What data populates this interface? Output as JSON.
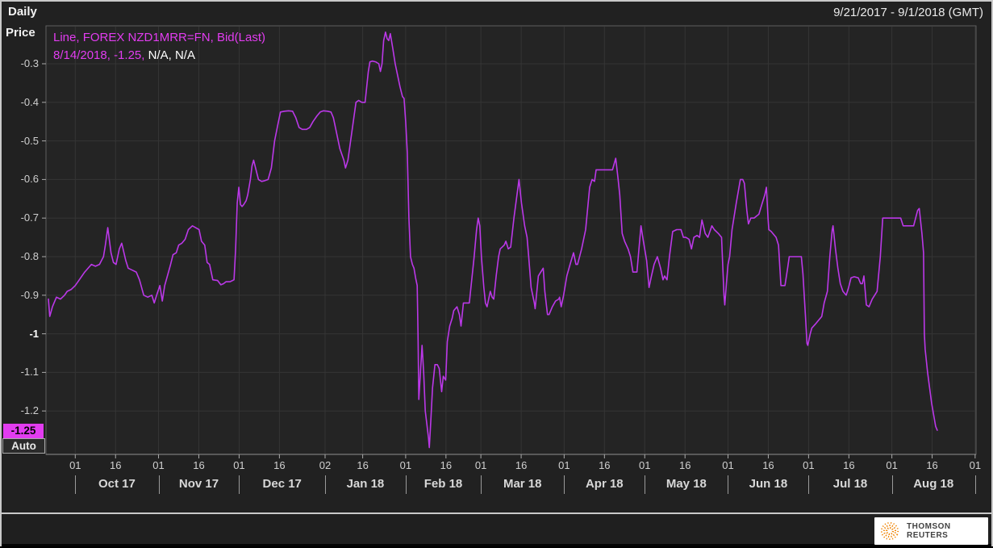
{
  "window": {
    "frequency_label": "Daily",
    "date_range": "9/21/2017 - 9/1/2018 (GMT)"
  },
  "y_axis": {
    "title": "Price",
    "last_value_badge": "-1.25",
    "auto_button": "Auto"
  },
  "legend": {
    "series_line": "Line, FOREX NZD1MRR=FN, Bid(Last)",
    "tracker_highlight": "8/14/2018, -1.25,",
    "tracker_rest": " N/A, N/A"
  },
  "footer": {
    "brand": "THOMSON REUTERS"
  },
  "colors": {
    "line": "#bb38e8",
    "legend_text": "#e23cf0",
    "badge_bg": "#e23cf0",
    "badge_text": "#000000",
    "grid": "#353535",
    "axis_text": "#cfcfcf",
    "plot_border": "#5e5e5e",
    "axis_line": "#8f8f8f",
    "tick": "#aaaaaa",
    "app_bg": "#212121",
    "plot_bg": "#242424",
    "frame": "#c9c9c9",
    "logo_orange": "#ef8200"
  },
  "chart_data": {
    "type": "line",
    "title": "",
    "ylabel": "Price",
    "series_name": "FOREX NZD1MRR=FN Bid(Last)",
    "x_unit": "days since 2017-09-21",
    "x_domain_days": [
      0,
      345
    ],
    "ylim": [
      -1.31,
      -0.2
    ],
    "grid": true,
    "legend_position": "top-left",
    "y_ticks": [
      {
        "label": "-0.3",
        "value": -0.3
      },
      {
        "label": "-0.4",
        "value": -0.4
      },
      {
        "label": "-0.5",
        "value": -0.5
      },
      {
        "label": "-0.6",
        "value": -0.6
      },
      {
        "label": "-0.7",
        "value": -0.7
      },
      {
        "label": "-0.8",
        "value": -0.8
      },
      {
        "label": "-0.9",
        "value": -0.9
      },
      {
        "label": "-1",
        "value": -1.0,
        "bold": true
      },
      {
        "label": "-1.1",
        "value": -1.1
      },
      {
        "label": "-1.2",
        "value": -1.2
      }
    ],
    "x_ticks": [
      {
        "label": "01",
        "day": 10
      },
      {
        "label": "16",
        "day": 25
      },
      {
        "label": "01",
        "day": 41
      },
      {
        "label": "16",
        "day": 56
      },
      {
        "label": "01",
        "day": 71
      },
      {
        "label": "16",
        "day": 86
      },
      {
        "label": "02",
        "day": 103
      },
      {
        "label": "16",
        "day": 117
      },
      {
        "label": "01",
        "day": 133
      },
      {
        "label": "16",
        "day": 148
      },
      {
        "label": "01",
        "day": 161
      },
      {
        "label": "16",
        "day": 176
      },
      {
        "label": "01",
        "day": 192
      },
      {
        "label": "16",
        "day": 207
      },
      {
        "label": "01",
        "day": 222
      },
      {
        "label": "16",
        "day": 237
      },
      {
        "label": "01",
        "day": 253
      },
      {
        "label": "16",
        "day": 268
      },
      {
        "label": "01",
        "day": 283
      },
      {
        "label": "16",
        "day": 298
      },
      {
        "label": "01",
        "day": 314
      },
      {
        "label": "16",
        "day": 329
      },
      {
        "label": "01",
        "day": 345
      }
    ],
    "month_separators_days": [
      10,
      41,
      71,
      103,
      133,
      161,
      192,
      222,
      253,
      283,
      314,
      345
    ],
    "months": [
      {
        "label": "Oct 17",
        "center_day": 25.5
      },
      {
        "label": "Nov 17",
        "center_day": 56
      },
      {
        "label": "Dec 17",
        "center_day": 87
      },
      {
        "label": "Jan 18",
        "center_day": 118
      },
      {
        "label": "Feb 18",
        "center_day": 147
      },
      {
        "label": "Mar 18",
        "center_day": 176.5
      },
      {
        "label": "Apr 18",
        "center_day": 207
      },
      {
        "label": "May 18",
        "center_day": 237.5
      },
      {
        "label": "Jun 18",
        "center_day": 268
      },
      {
        "label": "Jul 18",
        "center_day": 298.5
      },
      {
        "label": "Aug 18",
        "center_day": 329.5
      }
    ],
    "points": [
      [
        0,
        -0.91
      ],
      [
        0.5,
        -0.955
      ],
      [
        1.5,
        -0.93
      ],
      [
        3,
        -0.905
      ],
      [
        4.5,
        -0.91
      ],
      [
        6,
        -0.9
      ],
      [
        7,
        -0.89
      ],
      [
        8.5,
        -0.885
      ],
      [
        10,
        -0.875
      ],
      [
        11.5,
        -0.86
      ],
      [
        13.5,
        -0.84
      ],
      [
        16,
        -0.82
      ],
      [
        17.5,
        -0.825
      ],
      [
        19,
        -0.82
      ],
      [
        20.5,
        -0.8
      ],
      [
        21.2,
        -0.77
      ],
      [
        22.1,
        -0.725
      ],
      [
        23.3,
        -0.79
      ],
      [
        24.2,
        -0.815
      ],
      [
        25.2,
        -0.82
      ],
      [
        26.4,
        -0.78
      ],
      [
        27.3,
        -0.765
      ],
      [
        28.8,
        -0.81
      ],
      [
        29.7,
        -0.83
      ],
      [
        31.2,
        -0.835
      ],
      [
        32.7,
        -0.84
      ],
      [
        33.9,
        -0.86
      ],
      [
        35.5,
        -0.9
      ],
      [
        37,
        -0.905
      ],
      [
        38.5,
        -0.9
      ],
      [
        39.4,
        -0.92
      ],
      [
        40.3,
        -0.9
      ],
      [
        41.5,
        -0.875
      ],
      [
        42.4,
        -0.915
      ],
      [
        43.3,
        -0.875
      ],
      [
        44.5,
        -0.845
      ],
      [
        45.5,
        -0.82
      ],
      [
        46.4,
        -0.795
      ],
      [
        47.6,
        -0.79
      ],
      [
        48.5,
        -0.77
      ],
      [
        49.7,
        -0.765
      ],
      [
        50.9,
        -0.755
      ],
      [
        52.1,
        -0.73
      ],
      [
        53.6,
        -0.72
      ],
      [
        54.8,
        -0.725
      ],
      [
        56.1,
        -0.73
      ],
      [
        57,
        -0.76
      ],
      [
        58.2,
        -0.77
      ],
      [
        59.1,
        -0.815
      ],
      [
        60,
        -0.82
      ],
      [
        61.2,
        -0.86
      ],
      [
        63,
        -0.862
      ],
      [
        64.2,
        -0.873
      ],
      [
        65.2,
        -0.87
      ],
      [
        66.1,
        -0.865
      ],
      [
        67.6,
        -0.865
      ],
      [
        69.1,
        -0.86
      ],
      [
        69.7,
        -0.78
      ],
      [
        70.3,
        -0.66
      ],
      [
        70.9,
        -0.62
      ],
      [
        71.5,
        -0.665
      ],
      [
        72.1,
        -0.67
      ],
      [
        72.7,
        -0.665
      ],
      [
        73.6,
        -0.655
      ],
      [
        74.2,
        -0.64
      ],
      [
        75.2,
        -0.6
      ],
      [
        75.8,
        -0.565
      ],
      [
        76.4,
        -0.55
      ],
      [
        77.3,
        -0.575
      ],
      [
        78.2,
        -0.6
      ],
      [
        79.4,
        -0.605
      ],
      [
        80.6,
        -0.603
      ],
      [
        81.8,
        -0.6
      ],
      [
        83,
        -0.57
      ],
      [
        84.2,
        -0.5
      ],
      [
        85.5,
        -0.455
      ],
      [
        86.4,
        -0.425
      ],
      [
        87.9,
        -0.423
      ],
      [
        89.4,
        -0.422
      ],
      [
        90.9,
        -0.423
      ],
      [
        92.1,
        -0.44
      ],
      [
        93.3,
        -0.465
      ],
      [
        94.5,
        -0.47
      ],
      [
        96.1,
        -0.47
      ],
      [
        97.3,
        -0.465
      ],
      [
        98.5,
        -0.45
      ],
      [
        100,
        -0.435
      ],
      [
        101.2,
        -0.425
      ],
      [
        102.4,
        -0.422
      ],
      [
        103.9,
        -0.423
      ],
      [
        105.2,
        -0.425
      ],
      [
        106.1,
        -0.44
      ],
      [
        107.3,
        -0.48
      ],
      [
        108.5,
        -0.52
      ],
      [
        110,
        -0.55
      ],
      [
        110.6,
        -0.57
      ],
      [
        111.5,
        -0.55
      ],
      [
        112.1,
        -0.52
      ],
      [
        113.3,
        -0.46
      ],
      [
        114.5,
        -0.4
      ],
      [
        115.5,
        -0.395
      ],
      [
        116.7,
        -0.4
      ],
      [
        117.9,
        -0.4
      ],
      [
        119.1,
        -0.32
      ],
      [
        119.7,
        -0.295
      ],
      [
        120.6,
        -0.293
      ],
      [
        121.8,
        -0.295
      ],
      [
        123,
        -0.3
      ],
      [
        123.6,
        -0.32
      ],
      [
        124.2,
        -0.3
      ],
      [
        124.8,
        -0.24
      ],
      [
        125.5,
        -0.218
      ],
      [
        126.1,
        -0.235
      ],
      [
        126.7,
        -0.24
      ],
      [
        127.3,
        -0.222
      ],
      [
        128.2,
        -0.26
      ],
      [
        129.1,
        -0.3
      ],
      [
        130,
        -0.33
      ],
      [
        130.9,
        -0.36
      ],
      [
        131.8,
        -0.385
      ],
      [
        132.4,
        -0.39
      ],
      [
        133,
        -0.45
      ],
      [
        133.6,
        -0.53
      ],
      [
        134.2,
        -0.7
      ],
      [
        134.8,
        -0.8
      ],
      [
        135.5,
        -0.82
      ],
      [
        136.1,
        -0.83
      ],
      [
        136.7,
        -0.855
      ],
      [
        137.3,
        -0.875
      ],
      [
        137.6,
        -1.0
      ],
      [
        137.9,
        -1.17
      ],
      [
        138.5,
        -1.1
      ],
      [
        139.1,
        -1.03
      ],
      [
        139.7,
        -1.1
      ],
      [
        140.3,
        -1.2
      ],
      [
        140.9,
        -1.235
      ],
      [
        141.5,
        -1.27
      ],
      [
        141.8,
        -1.295
      ],
      [
        142.4,
        -1.22
      ],
      [
        143,
        -1.14
      ],
      [
        143.9,
        -1.08
      ],
      [
        144.8,
        -1.08
      ],
      [
        145.5,
        -1.09
      ],
      [
        146.4,
        -1.15
      ],
      [
        147,
        -1.11
      ],
      [
        147.9,
        -1.12
      ],
      [
        148.5,
        -1.02
      ],
      [
        149.4,
        -0.98
      ],
      [
        150.3,
        -0.96
      ],
      [
        150.9,
        -0.94
      ],
      [
        152.1,
        -0.93
      ],
      [
        153,
        -0.95
      ],
      [
        153.6,
        -0.98
      ],
      [
        154.5,
        -0.92
      ],
      [
        155.5,
        -0.92
      ],
      [
        156.7,
        -0.92
      ],
      [
        157.6,
        -0.86
      ],
      [
        158.5,
        -0.8
      ],
      [
        159.4,
        -0.73
      ],
      [
        160,
        -0.7
      ],
      [
        160.6,
        -0.72
      ],
      [
        161.2,
        -0.8
      ],
      [
        162.1,
        -0.88
      ],
      [
        162.7,
        -0.92
      ],
      [
        163.3,
        -0.93
      ],
      [
        164.5,
        -0.89
      ],
      [
        165.2,
        -0.905
      ],
      [
        165.8,
        -0.91
      ],
      [
        166.7,
        -0.85
      ],
      [
        167.6,
        -0.8
      ],
      [
        168.2,
        -0.78
      ],
      [
        169.7,
        -0.77
      ],
      [
        170.3,
        -0.76
      ],
      [
        171.2,
        -0.78
      ],
      [
        172.1,
        -0.775
      ],
      [
        173.3,
        -0.7
      ],
      [
        175.2,
        -0.6
      ],
      [
        176.1,
        -0.66
      ],
      [
        177.3,
        -0.72
      ],
      [
        178.2,
        -0.75
      ],
      [
        178.8,
        -0.8
      ],
      [
        179.7,
        -0.88
      ],
      [
        180.9,
        -0.92
      ],
      [
        181.2,
        -0.935
      ],
      [
        182.4,
        -0.85
      ],
      [
        183.3,
        -0.84
      ],
      [
        184.2,
        -0.83
      ],
      [
        184.8,
        -0.89
      ],
      [
        185.8,
        -0.95
      ],
      [
        186.4,
        -0.95
      ],
      [
        187.6,
        -0.93
      ],
      [
        188.8,
        -0.915
      ],
      [
        190,
        -0.91
      ],
      [
        190.3,
        -0.905
      ],
      [
        190.9,
        -0.93
      ],
      [
        191.8,
        -0.9
      ],
      [
        193,
        -0.85
      ],
      [
        194.2,
        -0.82
      ],
      [
        195.5,
        -0.79
      ],
      [
        196.4,
        -0.82
      ],
      [
        197,
        -0.82
      ],
      [
        198.5,
        -0.78
      ],
      [
        200,
        -0.73
      ],
      [
        201.5,
        -0.62
      ],
      [
        202.4,
        -0.6
      ],
      [
        203.3,
        -0.605
      ],
      [
        203.9,
        -0.575
      ],
      [
        205.5,
        -0.575
      ],
      [
        207,
        -0.575
      ],
      [
        208.5,
        -0.575
      ],
      [
        210,
        -0.575
      ],
      [
        211.2,
        -0.545
      ],
      [
        212.1,
        -0.6
      ],
      [
        212.7,
        -0.64
      ],
      [
        213.6,
        -0.74
      ],
      [
        214.5,
        -0.76
      ],
      [
        215.8,
        -0.78
      ],
      [
        216.7,
        -0.8
      ],
      [
        217.6,
        -0.84
      ],
      [
        219.1,
        -0.84
      ],
      [
        220.6,
        -0.72
      ],
      [
        221.5,
        -0.76
      ],
      [
        222.7,
        -0.81
      ],
      [
        223.6,
        -0.88
      ],
      [
        224.5,
        -0.85
      ],
      [
        225.5,
        -0.82
      ],
      [
        226.7,
        -0.8
      ],
      [
        227.9,
        -0.83
      ],
      [
        228.8,
        -0.86
      ],
      [
        229.4,
        -0.85
      ],
      [
        230.3,
        -0.86
      ],
      [
        231.2,
        -0.8
      ],
      [
        232.4,
        -0.735
      ],
      [
        233.9,
        -0.73
      ],
      [
        235.5,
        -0.73
      ],
      [
        236.4,
        -0.75
      ],
      [
        237.3,
        -0.75
      ],
      [
        238.5,
        -0.755
      ],
      [
        239.4,
        -0.78
      ],
      [
        240.3,
        -0.75
      ],
      [
        241.5,
        -0.745
      ],
      [
        242.4,
        -0.75
      ],
      [
        243.3,
        -0.705
      ],
      [
        244.5,
        -0.74
      ],
      [
        245.5,
        -0.75
      ],
      [
        247,
        -0.72
      ],
      [
        247.9,
        -0.73
      ],
      [
        249.4,
        -0.74
      ],
      [
        250.6,
        -0.75
      ],
      [
        251.5,
        -0.9
      ],
      [
        251.8,
        -0.925
      ],
      [
        252.4,
        -0.87
      ],
      [
        253,
        -0.82
      ],
      [
        253.6,
        -0.8
      ],
      [
        254.5,
        -0.73
      ],
      [
        256.1,
        -0.66
      ],
      [
        257.6,
        -0.6
      ],
      [
        258.5,
        -0.6
      ],
      [
        259.1,
        -0.61
      ],
      [
        260,
        -0.68
      ],
      [
        260.6,
        -0.715
      ],
      [
        261.5,
        -0.7
      ],
      [
        262.7,
        -0.7
      ],
      [
        263.6,
        -0.695
      ],
      [
        264.5,
        -0.69
      ],
      [
        265.8,
        -0.66
      ],
      [
        266.7,
        -0.64
      ],
      [
        267.3,
        -0.62
      ],
      [
        267.9,
        -0.7
      ],
      [
        268.2,
        -0.73
      ],
      [
        269.1,
        -0.735
      ],
      [
        270.9,
        -0.75
      ],
      [
        271.8,
        -0.77
      ],
      [
        272.7,
        -0.875
      ],
      [
        273.6,
        -0.875
      ],
      [
        274.2,
        -0.875
      ],
      [
        275.2,
        -0.83
      ],
      [
        275.8,
        -0.8
      ],
      [
        277.3,
        -0.8
      ],
      [
        278.8,
        -0.8
      ],
      [
        280.3,
        -0.8
      ],
      [
        280.9,
        -0.845
      ],
      [
        281.8,
        -0.95
      ],
      [
        282.4,
        -1.025
      ],
      [
        282.7,
        -1.03
      ],
      [
        283.6,
        -1.0
      ],
      [
        284.2,
        -0.985
      ],
      [
        285.5,
        -0.975
      ],
      [
        286.7,
        -0.965
      ],
      [
        287.9,
        -0.955
      ],
      [
        288.8,
        -0.92
      ],
      [
        290,
        -0.89
      ],
      [
        290.9,
        -0.8
      ],
      [
        291.8,
        -0.73
      ],
      [
        292.1,
        -0.72
      ],
      [
        293,
        -0.78
      ],
      [
        293.9,
        -0.83
      ],
      [
        294.8,
        -0.87
      ],
      [
        295.8,
        -0.89
      ],
      [
        297,
        -0.9
      ],
      [
        297.9,
        -0.88
      ],
      [
        298.8,
        -0.855
      ],
      [
        300,
        -0.852
      ],
      [
        301.5,
        -0.855
      ],
      [
        302.4,
        -0.87
      ],
      [
        303,
        -0.87
      ],
      [
        303.6,
        -0.85
      ],
      [
        304.5,
        -0.925
      ],
      [
        305.5,
        -0.93
      ],
      [
        306.7,
        -0.91
      ],
      [
        307.6,
        -0.9
      ],
      [
        308.5,
        -0.89
      ],
      [
        309.7,
        -0.8
      ],
      [
        310.6,
        -0.7
      ],
      [
        312.1,
        -0.7
      ],
      [
        313.6,
        -0.7
      ],
      [
        315.2,
        -0.7
      ],
      [
        316.7,
        -0.7
      ],
      [
        317.3,
        -0.7
      ],
      [
        318.2,
        -0.72
      ],
      [
        319.7,
        -0.72
      ],
      [
        321.2,
        -0.72
      ],
      [
        322.1,
        -0.72
      ],
      [
        323.6,
        -0.68
      ],
      [
        324.2,
        -0.675
      ],
      [
        325.2,
        -0.74
      ],
      [
        325.8,
        -0.79
      ],
      [
        326.1,
        -1.0
      ],
      [
        326.4,
        -1.04
      ],
      [
        327.3,
        -1.1
      ],
      [
        328.8,
        -1.18
      ],
      [
        330.3,
        -1.24
      ],
      [
        330.9,
        -1.25
      ]
    ]
  }
}
